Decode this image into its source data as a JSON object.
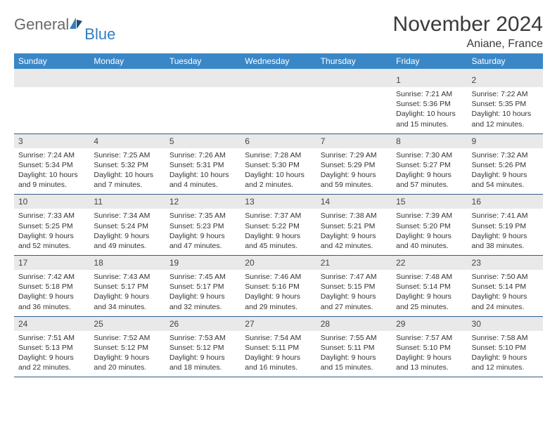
{
  "brand": {
    "part1": "General",
    "part2": "Blue"
  },
  "title": "November 2024",
  "location": "Aniane, France",
  "weekdays": [
    "Sunday",
    "Monday",
    "Tuesday",
    "Wednesday",
    "Thursday",
    "Friday",
    "Saturday"
  ],
  "colors": {
    "header_bg": "#3a87c8",
    "header_text": "#ffffff",
    "daynum_bg": "#e9e9e9",
    "border": "#2f5d8a",
    "brand_gray": "#6a6a6a",
    "brand_blue": "#2f7ec2"
  },
  "weeks": [
    [
      {
        "n": "",
        "sunrise": "",
        "sunset": "",
        "daylight": ""
      },
      {
        "n": "",
        "sunrise": "",
        "sunset": "",
        "daylight": ""
      },
      {
        "n": "",
        "sunrise": "",
        "sunset": "",
        "daylight": ""
      },
      {
        "n": "",
        "sunrise": "",
        "sunset": "",
        "daylight": ""
      },
      {
        "n": "",
        "sunrise": "",
        "sunset": "",
        "daylight": ""
      },
      {
        "n": "1",
        "sunrise": "Sunrise: 7:21 AM",
        "sunset": "Sunset: 5:36 PM",
        "daylight": "Daylight: 10 hours and 15 minutes."
      },
      {
        "n": "2",
        "sunrise": "Sunrise: 7:22 AM",
        "sunset": "Sunset: 5:35 PM",
        "daylight": "Daylight: 10 hours and 12 minutes."
      }
    ],
    [
      {
        "n": "3",
        "sunrise": "Sunrise: 7:24 AM",
        "sunset": "Sunset: 5:34 PM",
        "daylight": "Daylight: 10 hours and 9 minutes."
      },
      {
        "n": "4",
        "sunrise": "Sunrise: 7:25 AM",
        "sunset": "Sunset: 5:32 PM",
        "daylight": "Daylight: 10 hours and 7 minutes."
      },
      {
        "n": "5",
        "sunrise": "Sunrise: 7:26 AM",
        "sunset": "Sunset: 5:31 PM",
        "daylight": "Daylight: 10 hours and 4 minutes."
      },
      {
        "n": "6",
        "sunrise": "Sunrise: 7:28 AM",
        "sunset": "Sunset: 5:30 PM",
        "daylight": "Daylight: 10 hours and 2 minutes."
      },
      {
        "n": "7",
        "sunrise": "Sunrise: 7:29 AM",
        "sunset": "Sunset: 5:29 PM",
        "daylight": "Daylight: 9 hours and 59 minutes."
      },
      {
        "n": "8",
        "sunrise": "Sunrise: 7:30 AM",
        "sunset": "Sunset: 5:27 PM",
        "daylight": "Daylight: 9 hours and 57 minutes."
      },
      {
        "n": "9",
        "sunrise": "Sunrise: 7:32 AM",
        "sunset": "Sunset: 5:26 PM",
        "daylight": "Daylight: 9 hours and 54 minutes."
      }
    ],
    [
      {
        "n": "10",
        "sunrise": "Sunrise: 7:33 AM",
        "sunset": "Sunset: 5:25 PM",
        "daylight": "Daylight: 9 hours and 52 minutes."
      },
      {
        "n": "11",
        "sunrise": "Sunrise: 7:34 AM",
        "sunset": "Sunset: 5:24 PM",
        "daylight": "Daylight: 9 hours and 49 minutes."
      },
      {
        "n": "12",
        "sunrise": "Sunrise: 7:35 AM",
        "sunset": "Sunset: 5:23 PM",
        "daylight": "Daylight: 9 hours and 47 minutes."
      },
      {
        "n": "13",
        "sunrise": "Sunrise: 7:37 AM",
        "sunset": "Sunset: 5:22 PM",
        "daylight": "Daylight: 9 hours and 45 minutes."
      },
      {
        "n": "14",
        "sunrise": "Sunrise: 7:38 AM",
        "sunset": "Sunset: 5:21 PM",
        "daylight": "Daylight: 9 hours and 42 minutes."
      },
      {
        "n": "15",
        "sunrise": "Sunrise: 7:39 AM",
        "sunset": "Sunset: 5:20 PM",
        "daylight": "Daylight: 9 hours and 40 minutes."
      },
      {
        "n": "16",
        "sunrise": "Sunrise: 7:41 AM",
        "sunset": "Sunset: 5:19 PM",
        "daylight": "Daylight: 9 hours and 38 minutes."
      }
    ],
    [
      {
        "n": "17",
        "sunrise": "Sunrise: 7:42 AM",
        "sunset": "Sunset: 5:18 PM",
        "daylight": "Daylight: 9 hours and 36 minutes."
      },
      {
        "n": "18",
        "sunrise": "Sunrise: 7:43 AM",
        "sunset": "Sunset: 5:17 PM",
        "daylight": "Daylight: 9 hours and 34 minutes."
      },
      {
        "n": "19",
        "sunrise": "Sunrise: 7:45 AM",
        "sunset": "Sunset: 5:17 PM",
        "daylight": "Daylight: 9 hours and 32 minutes."
      },
      {
        "n": "20",
        "sunrise": "Sunrise: 7:46 AM",
        "sunset": "Sunset: 5:16 PM",
        "daylight": "Daylight: 9 hours and 29 minutes."
      },
      {
        "n": "21",
        "sunrise": "Sunrise: 7:47 AM",
        "sunset": "Sunset: 5:15 PM",
        "daylight": "Daylight: 9 hours and 27 minutes."
      },
      {
        "n": "22",
        "sunrise": "Sunrise: 7:48 AM",
        "sunset": "Sunset: 5:14 PM",
        "daylight": "Daylight: 9 hours and 25 minutes."
      },
      {
        "n": "23",
        "sunrise": "Sunrise: 7:50 AM",
        "sunset": "Sunset: 5:14 PM",
        "daylight": "Daylight: 9 hours and 24 minutes."
      }
    ],
    [
      {
        "n": "24",
        "sunrise": "Sunrise: 7:51 AM",
        "sunset": "Sunset: 5:13 PM",
        "daylight": "Daylight: 9 hours and 22 minutes."
      },
      {
        "n": "25",
        "sunrise": "Sunrise: 7:52 AM",
        "sunset": "Sunset: 5:12 PM",
        "daylight": "Daylight: 9 hours and 20 minutes."
      },
      {
        "n": "26",
        "sunrise": "Sunrise: 7:53 AM",
        "sunset": "Sunset: 5:12 PM",
        "daylight": "Daylight: 9 hours and 18 minutes."
      },
      {
        "n": "27",
        "sunrise": "Sunrise: 7:54 AM",
        "sunset": "Sunset: 5:11 PM",
        "daylight": "Daylight: 9 hours and 16 minutes."
      },
      {
        "n": "28",
        "sunrise": "Sunrise: 7:55 AM",
        "sunset": "Sunset: 5:11 PM",
        "daylight": "Daylight: 9 hours and 15 minutes."
      },
      {
        "n": "29",
        "sunrise": "Sunrise: 7:57 AM",
        "sunset": "Sunset: 5:10 PM",
        "daylight": "Daylight: 9 hours and 13 minutes."
      },
      {
        "n": "30",
        "sunrise": "Sunrise: 7:58 AM",
        "sunset": "Sunset: 5:10 PM",
        "daylight": "Daylight: 9 hours and 12 minutes."
      }
    ]
  ]
}
